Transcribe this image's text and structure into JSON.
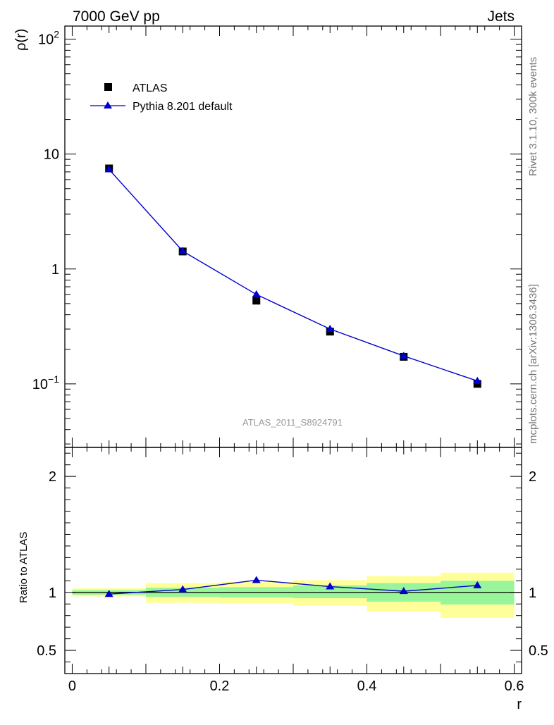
{
  "header": {
    "left": "7000 GeV pp",
    "right": "Jets"
  },
  "side_text": {
    "top": "Rivet 3.1.10,  300k events",
    "bottom": "mcplots.cern.ch [arXiv:1306.3436]"
  },
  "watermark": "ATLAS_2011_S8924791",
  "colors": {
    "data": "#000000",
    "mc": "#0000cc",
    "band_inner": "#99f599",
    "band_outer": "#ffff99",
    "watermark": "#999999",
    "side_text": "#777777"
  },
  "chart_data": [
    {
      "type": "scatter",
      "scale": "log",
      "ylabel": "ρ(r)",
      "xlim": [
        -0.01,
        0.61
      ],
      "ylim": [
        0.028,
        130
      ],
      "y_ticks": [
        {
          "value": 0.1,
          "base": "10",
          "exp": "−1"
        },
        {
          "value": 1,
          "label": "1"
        },
        {
          "value": 10,
          "label": "10"
        },
        {
          "value": 100,
          "base": "10",
          "exp": "2"
        }
      ],
      "legend_position": "top-left",
      "series": [
        {
          "name": "ATLAS",
          "marker": "square",
          "x": [
            0.05,
            0.15,
            0.25,
            0.35,
            0.45,
            0.55
          ],
          "y": [
            7.5,
            1.42,
            0.53,
            0.285,
            0.172,
            0.1
          ]
        },
        {
          "name": "Pythia 8.201 default",
          "marker": "triangle",
          "line": true,
          "x": [
            0.05,
            0.15,
            0.25,
            0.35,
            0.45,
            0.55
          ],
          "y": [
            7.35,
            1.43,
            0.6,
            0.3,
            0.175,
            0.106
          ]
        }
      ]
    },
    {
      "type": "line",
      "ylabel": "Ratio to ATLAS",
      "xlabel": "r",
      "xlim": [
        -0.01,
        0.61
      ],
      "ylim": [
        0.3,
        2.25
      ],
      "y_ticks": [
        {
          "value": 0.5,
          "label": "0.5"
        },
        {
          "value": 1,
          "label": "1"
        },
        {
          "value": 2,
          "label": "2"
        }
      ],
      "x_ticks": [
        {
          "value": 0,
          "label": "0"
        },
        {
          "value": 0.2,
          "label": "0.2"
        },
        {
          "value": 0.4,
          "label": "0.4"
        },
        {
          "value": 0.6,
          "label": "0.6"
        }
      ],
      "bands": [
        {
          "x0": 0.0,
          "x1": 0.1,
          "outer": [
            0.965,
            1.035
          ],
          "inner": [
            0.98,
            1.02
          ]
        },
        {
          "x0": 0.1,
          "x1": 0.2,
          "outer": [
            0.91,
            1.08
          ],
          "inner": [
            0.96,
            1.04
          ]
        },
        {
          "x0": 0.2,
          "x1": 0.3,
          "outer": [
            0.905,
            1.09
          ],
          "inner": [
            0.955,
            1.045
          ]
        },
        {
          "x0": 0.3,
          "x1": 0.4,
          "outer": [
            0.885,
            1.105
          ],
          "inner": [
            0.95,
            1.06
          ]
        },
        {
          "x0": 0.4,
          "x1": 0.5,
          "outer": [
            0.835,
            1.14
          ],
          "inner": [
            0.92,
            1.08
          ]
        },
        {
          "x0": 0.5,
          "x1": 0.6,
          "outer": [
            0.78,
            1.17
          ],
          "inner": [
            0.895,
            1.1
          ]
        }
      ],
      "series": [
        {
          "name": "Pythia 8.201 default",
          "x": [
            0.05,
            0.15,
            0.25,
            0.35,
            0.45,
            0.55
          ],
          "y": [
            0.985,
            1.025,
            1.105,
            1.05,
            1.01,
            1.06
          ]
        }
      ]
    }
  ]
}
